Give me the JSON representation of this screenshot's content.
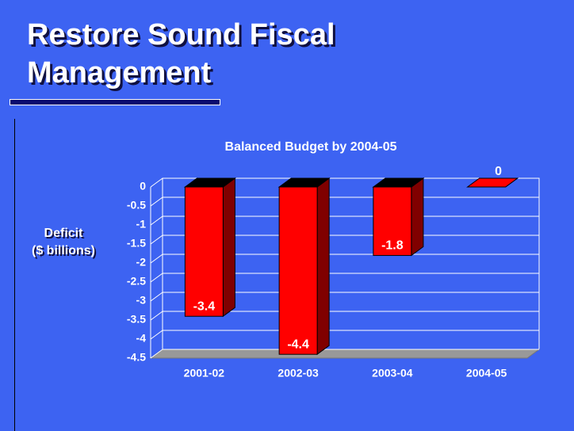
{
  "title": "Restore Sound Fiscal Management",
  "chart_data": {
    "type": "bar3d",
    "title": "Balanced Budget by 2004-05",
    "ylabel": [
      "Deficit",
      "($ billions)"
    ],
    "categories": [
      "2001-02",
      "2002-03",
      "2003-04",
      "2004-05"
    ],
    "values": [
      -3.4,
      -4.4,
      -1.8,
      0
    ],
    "color": "#ff0000",
    "ylim": [
      -4.5,
      0
    ],
    "yticks": [
      0,
      -0.5,
      -1,
      -1.5,
      -2,
      -2.5,
      -3,
      -3.5,
      -4,
      -4.5
    ],
    "grid": true
  }
}
